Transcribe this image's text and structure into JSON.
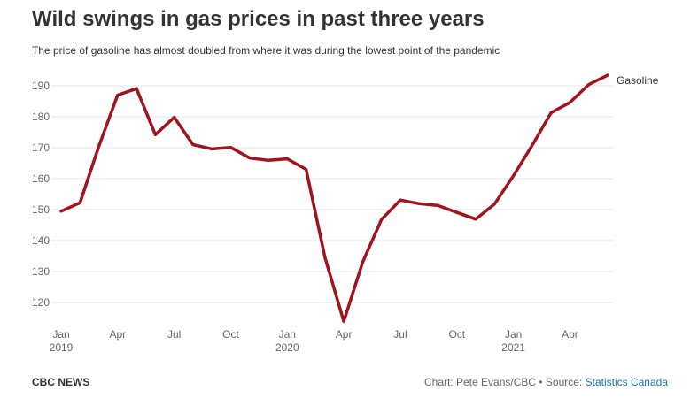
{
  "header": {
    "title": "Wild swings in gas prices in past three years",
    "subtitle": "The price of gasoline has almost doubled from where it was during the lowest point of the pandemic"
  },
  "footer": {
    "brand": "CBC NEWS",
    "credit": "Chart: Pete Evans/CBC • Source: ",
    "source_link": "Statistics Canada"
  },
  "colors": {
    "line": "#a0141e",
    "grid": "#e5e5e5"
  },
  "chart_data": {
    "type": "line",
    "title": "Wild swings in gas prices in past three years",
    "subtitle": "The price of gasoline has almost doubled from where it was during the lowest point of the pandemic",
    "xlabel": "",
    "ylabel": "",
    "ylim": [
      113,
      195
    ],
    "y_ticks": [
      120,
      130,
      140,
      150,
      160,
      170,
      180,
      190
    ],
    "grid": true,
    "legend": "right-end-label",
    "x": [
      "2019-01",
      "2019-02",
      "2019-03",
      "2019-04",
      "2019-05",
      "2019-06",
      "2019-07",
      "2019-08",
      "2019-09",
      "2019-10",
      "2019-11",
      "2019-12",
      "2020-01",
      "2020-02",
      "2020-03",
      "2020-04",
      "2020-05",
      "2020-06",
      "2020-07",
      "2020-08",
      "2020-09",
      "2020-10",
      "2020-11",
      "2020-12",
      "2021-01",
      "2021-02",
      "2021-03",
      "2021-04",
      "2021-05",
      "2021-06"
    ],
    "x_ticks": [
      {
        "month": "2019-01",
        "label": "Jan",
        "year": "2019"
      },
      {
        "month": "2019-04",
        "label": "Apr",
        "year": ""
      },
      {
        "month": "2019-07",
        "label": "Jul",
        "year": ""
      },
      {
        "month": "2019-10",
        "label": "Oct",
        "year": ""
      },
      {
        "month": "2020-01",
        "label": "Jan",
        "year": "2020"
      },
      {
        "month": "2020-04",
        "label": "Apr",
        "year": ""
      },
      {
        "month": "2020-07",
        "label": "Jul",
        "year": ""
      },
      {
        "month": "2020-10",
        "label": "Oct",
        "year": ""
      },
      {
        "month": "2021-01",
        "label": "Jan",
        "year": "2021"
      },
      {
        "month": "2021-04",
        "label": "Apr",
        "year": ""
      }
    ],
    "series": [
      {
        "name": "Gasoline",
        "values": [
          149.5,
          152.2,
          170.5,
          187.0,
          189.1,
          174.2,
          179.8,
          171.0,
          169.6,
          170.1,
          166.7,
          165.9,
          166.4,
          163.0,
          134.5,
          113.9,
          133.0,
          146.8,
          153.1,
          151.9,
          151.3,
          149.1,
          146.9,
          151.8,
          160.9,
          170.8,
          181.3,
          184.6,
          190.4,
          193.4
        ]
      }
    ]
  }
}
